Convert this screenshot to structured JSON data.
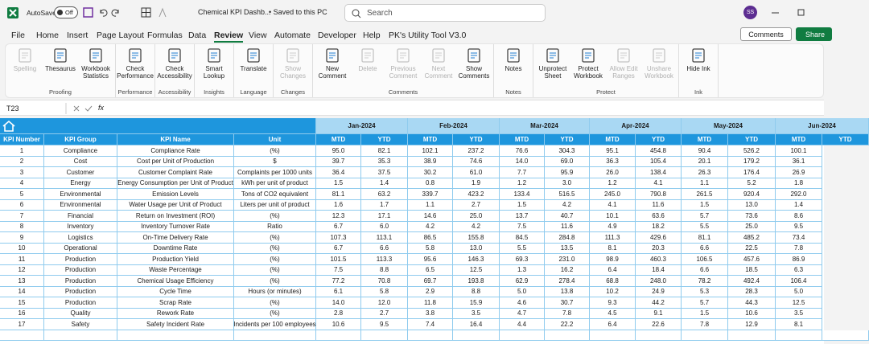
{
  "title_bar": {
    "autosave": "AutoSave",
    "toggle": "Off",
    "file_name": "Chemical KPI Dashb...",
    "save_status": "• Saved to this PC",
    "search": "Search",
    "user": "SS"
  },
  "menu": {
    "tabs": [
      "File",
      "Home",
      "Insert",
      "Page Layout",
      "Formulas",
      "Data",
      "Review",
      "View",
      "Automate",
      "Developer",
      "Help",
      "PK's Utility Tool V3.0"
    ],
    "active_tab": 6,
    "comments_button": "Comments",
    "share_button": "Share"
  },
  "ribbon": {
    "groups": [
      {
        "label": "Proofing",
        "buttons": [
          {
            "label": "Spelling",
            "disabled": true
          },
          {
            "label": "Thesaurus"
          },
          {
            "label": "Workbook Statistics"
          }
        ]
      },
      {
        "label": "Performance",
        "buttons": [
          {
            "label": "Check Performance"
          }
        ]
      },
      {
        "label": "Accessibility",
        "buttons": [
          {
            "label": "Check Accessibility"
          }
        ]
      },
      {
        "label": "Insights",
        "buttons": [
          {
            "label": "Smart Lookup"
          }
        ]
      },
      {
        "label": "Language",
        "buttons": [
          {
            "label": "Translate"
          }
        ]
      },
      {
        "label": "Changes",
        "buttons": [
          {
            "label": "Show Changes",
            "disabled": true
          }
        ]
      },
      {
        "label": "Comments",
        "buttons": [
          {
            "label": "New Comment"
          },
          {
            "label": "Delete",
            "disabled": true
          },
          {
            "label": "Previous Comment",
            "disabled": true
          },
          {
            "label": "Next Comment",
            "disabled": true
          },
          {
            "label": "Show Comments"
          }
        ]
      },
      {
        "label": "Notes",
        "buttons": [
          {
            "label": "Notes"
          }
        ]
      },
      {
        "label": "Protect",
        "buttons": [
          {
            "label": "Unprotect Sheet"
          },
          {
            "label": "Protect Workbook"
          },
          {
            "label": "Allow Edit Ranges",
            "disabled": true
          },
          {
            "label": "Unshare Workbook",
            "disabled": true
          }
        ]
      },
      {
        "label": "Ink",
        "buttons": [
          {
            "label": "Hide Ink"
          }
        ]
      }
    ]
  },
  "formula_bar": {
    "name_box": "T23",
    "fx": "fx"
  },
  "table": {
    "months": [
      "Jan-2024",
      "Feb-2024",
      "Mar-2024",
      "Apr-2024",
      "May-2024",
      "Jun-2024"
    ],
    "headers": [
      "KPI Number",
      "KPI Group",
      "KPI Name",
      "Unit"
    ],
    "sub_headers": [
      "MTD",
      "YTD"
    ],
    "rows": [
      [
        "1",
        "Compliance",
        "Compliance Rate",
        "(%)",
        "95.0",
        "82.1",
        "102.1",
        "237.2",
        "76.6",
        "304.3",
        "95.1",
        "454.8",
        "90.4",
        "526.2",
        "100.1"
      ],
      [
        "2",
        "Cost",
        "Cost per Unit of Production",
        "$",
        "39.7",
        "35.3",
        "38.9",
        "74.6",
        "14.0",
        "69.0",
        "36.3",
        "105.4",
        "20.1",
        "179.2",
        "36.1"
      ],
      [
        "3",
        "Customer",
        "Customer Complaint Rate",
        "Complaints per 1000 units",
        "36.4",
        "37.5",
        "30.2",
        "61.0",
        "7.7",
        "95.9",
        "26.0",
        "138.4",
        "26.3",
        "176.4",
        "26.9"
      ],
      [
        "4",
        "Energy",
        "Energy Consumption per Unit of Product",
        "kWh per unit of product",
        "1.5",
        "1.4",
        "0.8",
        "1.9",
        "1.2",
        "3.0",
        "1.2",
        "4.1",
        "1.1",
        "5.2",
        "1.8"
      ],
      [
        "5",
        "Environmental",
        "Emission Levels",
        "Tons of CO2 equivalent",
        "81.1",
        "63.2",
        "339.7",
        "423.2",
        "133.4",
        "516.5",
        "245.0",
        "790.8",
        "261.5",
        "920.4",
        "292.0"
      ],
      [
        "6",
        "Environmental",
        "Water Usage per Unit of Product",
        "Liters per unit of product",
        "1.6",
        "1.7",
        "1.1",
        "2.7",
        "1.5",
        "4.2",
        "4.1",
        "11.6",
        "1.5",
        "13.0",
        "1.4"
      ],
      [
        "7",
        "Financial",
        "Return on Investment (ROI)",
        "(%)",
        "12.3",
        "17.1",
        "14.6",
        "25.0",
        "13.7",
        "40.7",
        "10.1",
        "63.6",
        "5.7",
        "73.6",
        "8.6"
      ],
      [
        "8",
        "Inventory",
        "Inventory Turnover Rate",
        "Ratio",
        "6.7",
        "6.0",
        "4.2",
        "4.2",
        "7.5",
        "11.6",
        "4.9",
        "18.2",
        "5.5",
        "25.0",
        "9.5"
      ],
      [
        "9",
        "Logistics",
        "On-Time Delivery Rate",
        "(%)",
        "107.3",
        "113.1",
        "86.5",
        "155.8",
        "84.5",
        "284.8",
        "111.3",
        "429.6",
        "81.1",
        "485.2",
        "73.4"
      ],
      [
        "10",
        "Operational",
        "Downtime Rate",
        "(%)",
        "6.7",
        "6.6",
        "5.8",
        "13.0",
        "5.5",
        "13.5",
        "8.1",
        "20.3",
        "6.6",
        "22.5",
        "7.8"
      ],
      [
        "11",
        "Production",
        "Production Yield",
        "(%)",
        "101.5",
        "113.3",
        "95.6",
        "146.3",
        "69.3",
        "231.0",
        "98.9",
        "460.3",
        "106.5",
        "457.6",
        "86.9"
      ],
      [
        "12",
        "Production",
        "Waste Percentage",
        "(%)",
        "7.5",
        "8.8",
        "6.5",
        "12.5",
        "1.3",
        "16.2",
        "6.4",
        "18.4",
        "6.6",
        "18.5",
        "6.3"
      ],
      [
        "13",
        "Production",
        "Chemical Usage Efficiency",
        "(%)",
        "77.2",
        "70.8",
        "69.7",
        "193.8",
        "62.9",
        "278.4",
        "68.8",
        "248.0",
        "78.2",
        "492.4",
        "106.4"
      ],
      [
        "14",
        "Production",
        "Cycle Time",
        "Hours (or minutes)",
        "6.1",
        "5.8",
        "2.9",
        "8.8",
        "5.0",
        "13.8",
        "10.2",
        "24.9",
        "5.3",
        "28.3",
        "5.0"
      ],
      [
        "15",
        "Production",
        "Scrap Rate",
        "(%)",
        "14.0",
        "12.0",
        "11.8",
        "15.9",
        "4.6",
        "30.7",
        "9.3",
        "44.2",
        "5.7",
        "44.3",
        "12.5"
      ],
      [
        "16",
        "Quality",
        "Rework Rate",
        "(%)",
        "2.8",
        "2.7",
        "3.8",
        "3.5",
        "4.7",
        "7.8",
        "4.5",
        "9.1",
        "1.5",
        "10.6",
        "3.5"
      ],
      [
        "17",
        "Safety",
        "Safety Incident Rate",
        "Incidents per 100 employees",
        "10.6",
        "9.5",
        "7.4",
        "16.4",
        "4.4",
        "22.2",
        "6.4",
        "22.6",
        "7.8",
        "12.9",
        "8.1"
      ]
    ]
  }
}
